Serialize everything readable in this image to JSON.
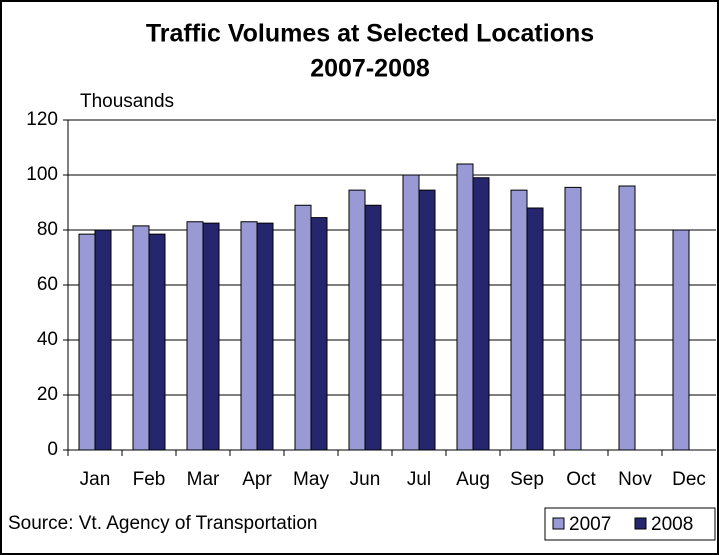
{
  "chart_data": {
    "type": "bar",
    "title": "Traffic Volumes at Selected Locations",
    "subtitle": "2007-2008",
    "y_label": "Thousands",
    "source": "Source: Vt. Agency of Transportation",
    "categories": [
      "Jan",
      "Feb",
      "Mar",
      "Apr",
      "May",
      "Jun",
      "Jul",
      "Aug",
      "Sep",
      "Oct",
      "Nov",
      "Dec"
    ],
    "series": [
      {
        "name": "2007",
        "color": "#9999d6",
        "values": [
          78.5,
          81.5,
          83,
          83,
          89,
          94.5,
          100,
          104,
          94.5,
          95.5,
          96,
          80
        ]
      },
      {
        "name": "2008",
        "color": "#26266e",
        "values": [
          80,
          78.5,
          82.5,
          82.5,
          84.5,
          89,
          94.5,
          99,
          88,
          null,
          null,
          null
        ]
      }
    ],
    "ylim": [
      0,
      120
    ],
    "yticks": [
      0,
      20,
      40,
      60,
      80,
      100,
      120
    ],
    "grid": true,
    "legend": "bottom-right"
  }
}
